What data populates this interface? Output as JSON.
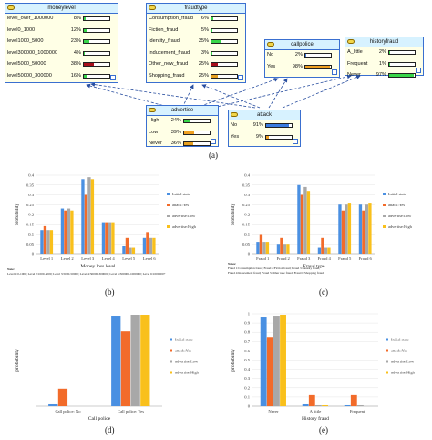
{
  "network": {
    "nodes": [
      {
        "id": "moneylevel",
        "title": "moneylevel",
        "rows": [
          {
            "label": "level_over_1000000",
            "pct": "8%",
            "value": 0.08,
            "color": "#39d64a"
          },
          {
            "label": "level0_1000",
            "pct": "12%",
            "value": 0.12,
            "color": "#39d64a"
          },
          {
            "label": "level1000_5000",
            "pct": "23%",
            "value": 0.23,
            "color": "#39d64a"
          },
          {
            "label": "level300000_1000000",
            "pct": "4%",
            "value": 0.04,
            "color": "#39d64a"
          },
          {
            "label": "level5000_50000",
            "pct": "38%",
            "value": 0.38,
            "color": "#a80f1a"
          },
          {
            "label": "level50000_300000",
            "pct": "16%",
            "value": 0.16,
            "color": "#39d64a"
          }
        ]
      },
      {
        "id": "fraudtype",
        "title": "fraudtype",
        "rows": [
          {
            "label": "Consumption_fraud",
            "pct": "6%",
            "value": 0.06,
            "color": "#39d64a"
          },
          {
            "label": "Fiction_fraud",
            "pct": "5%",
            "value": 0.05,
            "color": "#39d64a"
          },
          {
            "label": "Identity_fraud",
            "pct": "35%",
            "value": 0.35,
            "color": "#39d64a"
          },
          {
            "label": "Inducement_fraud",
            "pct": "3%",
            "value": 0.03,
            "color": "#39d64a"
          },
          {
            "label": "Other_new_fraud",
            "pct": "25%",
            "value": 0.25,
            "color": "#a80f1a"
          },
          {
            "label": "Shopping_fraud",
            "pct": "25%",
            "value": 0.25,
            "color": "#e6a020"
          }
        ]
      },
      {
        "id": "callpolice",
        "title": "callpolice",
        "rows": [
          {
            "label": "No",
            "pct": "2%",
            "value": 0.02,
            "color": "#3a7be0"
          },
          {
            "label": "Yes",
            "pct": "98%",
            "value": 0.98,
            "color": "#f0a020"
          }
        ]
      },
      {
        "id": "historyfraud",
        "title": "historyfraud",
        "rows": [
          {
            "label": "A_little",
            "pct": "2%",
            "value": 0.02,
            "color": "#39d64a"
          },
          {
            "label": "Frequent",
            "pct": "1%",
            "value": 0.01,
            "color": "#39d64a"
          },
          {
            "label": "Never",
            "pct": "97%",
            "value": 0.97,
            "color": "#39d64a"
          }
        ]
      },
      {
        "id": "advertise",
        "title": "advertise",
        "rows": [
          {
            "label": "High",
            "pct": "24%",
            "value": 0.24,
            "color": "#39d64a"
          },
          {
            "label": "Low",
            "pct": "39%",
            "value": 0.39,
            "color": "#f0a020"
          },
          {
            "label": "Never",
            "pct": "36%",
            "value": 0.36,
            "color": "#e6a020"
          }
        ]
      },
      {
        "id": "attack",
        "title": "attack",
        "rows": [
          {
            "label": "No",
            "pct": "91%",
            "value": 0.91,
            "color": "#3a7be0"
          },
          {
            "label": "Yes",
            "pct": "9%",
            "value": 0.09,
            "color": "#f0a020"
          }
        ]
      }
    ]
  },
  "panel_labels": {
    "a": "(a)",
    "b": "(b)",
    "c": "(c)",
    "d": "(d)",
    "e": "(e)"
  },
  "notes_b": {
    "title": "Note:",
    "line": "Level 1:0-1000;   Level 2:1000-5000;   Level 3:5000-50000;   Level 4:50000-300000;   Level 5:300000-1000000;   Level 6:1000000+"
  },
  "notes_c": {
    "title": "Notes:",
    "lines": [
      "Fraud 1:Consumption fraud;    Fraud 2:Fiction fraud;    Fraud 3:Identity fraud;",
      "Fraud 4:Inducement fraud;    Fraud 5:Other new fraud;    Fraud 6:Shopping fraud"
    ]
  },
  "chart_data": [
    {
      "id": "b",
      "type": "bar",
      "categories": [
        "Level 1",
        "Level 2",
        "Level 3",
        "Level 4",
        "Level 5",
        "Level 6"
      ],
      "xlabel": "Money loss level",
      "ylabel": "probability",
      "ylim": [
        0,
        0.4
      ],
      "yticks": [
        "0",
        "0.05",
        "0.1",
        "0.15",
        "0.2",
        "0.25",
        "0.3",
        "0.35",
        "0.4"
      ],
      "series": [
        {
          "name": "Initial state",
          "color": "#4a90e2",
          "values": [
            0.12,
            0.23,
            0.38,
            0.16,
            0.04,
            0.08
          ]
        },
        {
          "name": "attack:Yes",
          "color": "#f26b2a",
          "values": [
            0.14,
            0.22,
            0.3,
            0.16,
            0.08,
            0.11
          ]
        },
        {
          "name": "advertise:Low",
          "color": "#a8a8a8",
          "values": [
            0.12,
            0.23,
            0.39,
            0.16,
            0.03,
            0.08
          ]
        },
        {
          "name": "advertise:High",
          "color": "#f9c01c",
          "values": [
            0.12,
            0.22,
            0.38,
            0.16,
            0.03,
            0.08
          ]
        }
      ],
      "legend": "right"
    },
    {
      "id": "c",
      "type": "bar",
      "categories": [
        "Fraud 1",
        "Fraud 2",
        "Fraud 3",
        "Fraud 4",
        "Fraud 5",
        "Fraud 6"
      ],
      "xlabel": "Fraud type",
      "ylabel": "probability",
      "ylim": [
        0,
        0.4
      ],
      "yticks": [
        "0",
        "0.05",
        "0.1",
        "0.15",
        "0.2",
        "0.25",
        "0.3",
        "0.35",
        "0.4"
      ],
      "series": [
        {
          "name": "Initial state",
          "color": "#4a90e2",
          "values": [
            0.06,
            0.05,
            0.35,
            0.03,
            0.25,
            0.25
          ]
        },
        {
          "name": "attack:Yes",
          "color": "#f26b2a",
          "values": [
            0.1,
            0.08,
            0.3,
            0.08,
            0.22,
            0.22
          ]
        },
        {
          "name": "advertise:Low",
          "color": "#a8a8a8",
          "values": [
            0.06,
            0.05,
            0.34,
            0.03,
            0.25,
            0.25
          ]
        },
        {
          "name": "advertise:High",
          "color": "#f9c01c",
          "values": [
            0.06,
            0.05,
            0.32,
            0.03,
            0.26,
            0.26
          ]
        }
      ],
      "legend": "right"
    },
    {
      "id": "d",
      "type": "bar",
      "categories": [
        "Call police: No",
        "Call police: Yes"
      ],
      "xlabel": "Call police",
      "ylabel": "probability",
      "ylim": [
        0,
        1
      ],
      "yticks": [],
      "series": [
        {
          "name": "Initial state",
          "color": "#4a90e2",
          "values": [
            0.02,
            0.98
          ]
        },
        {
          "name": "attack:Yes",
          "color": "#f26b2a",
          "values": [
            0.19,
            0.81
          ]
        },
        {
          "name": "advertise:Low",
          "color": "#a8a8a8",
          "values": [
            0.0,
            0.99
          ]
        },
        {
          "name": "advertise:High",
          "color": "#f9c01c",
          "values": [
            0.0,
            0.99
          ]
        }
      ],
      "legend": "right"
    },
    {
      "id": "e",
      "type": "bar",
      "categories": [
        "Never",
        "A little",
        "Frequent"
      ],
      "xlabel": "History fraud",
      "ylabel": "probability",
      "ylim": [
        0,
        1
      ],
      "yticks": [
        "0",
        "0.1",
        "0.2",
        "0.3",
        "0.4",
        "0.5",
        "0.6",
        "0.7",
        "0.8",
        "0.9",
        "1"
      ],
      "series": [
        {
          "name": "Initial state",
          "color": "#4a90e2",
          "values": [
            0.97,
            0.02,
            0.01
          ]
        },
        {
          "name": "attack:Yes",
          "color": "#f26b2a",
          "values": [
            0.75,
            0.12,
            0.12
          ]
        },
        {
          "name": "advertise:Low",
          "color": "#a8a8a8",
          "values": [
            0.98,
            0.01,
            0.01
          ]
        },
        {
          "name": "advertise:High",
          "color": "#f9c01c",
          "values": [
            0.99,
            0.01,
            0.0
          ]
        }
      ],
      "legend": "right"
    }
  ]
}
